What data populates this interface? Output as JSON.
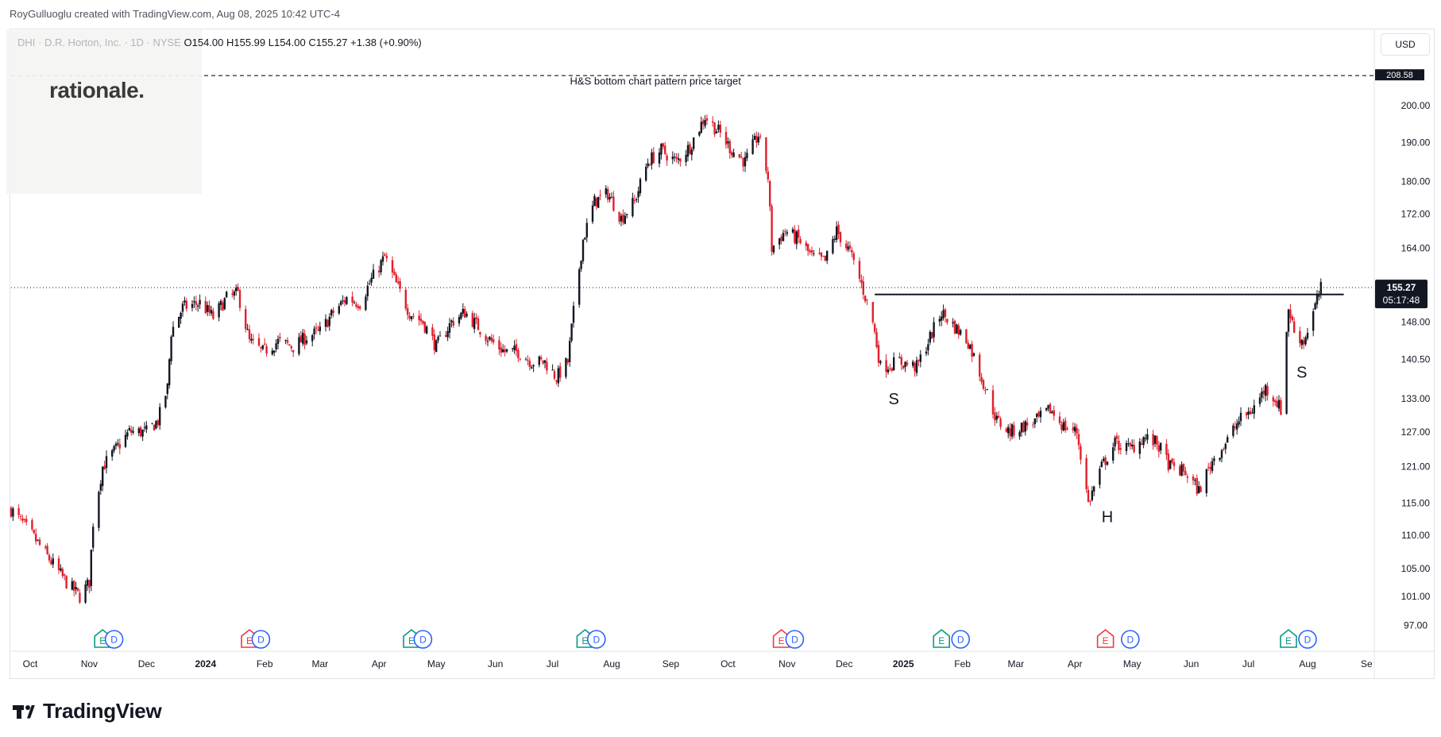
{
  "header": {
    "credit": "RoyGulluoglu created with TradingView.com, Aug 08, 2025 10:42 UTC-4",
    "symbol": "DHI · D.R. Horton, Inc. · 1D · NYSE",
    "ohlc": "O154.00  H155.99  L154.00  C155.27  +1.38 (+0.90%)",
    "currency": "USD",
    "watermark": "rationale."
  },
  "footer": {
    "brand": "TradingView"
  },
  "colors": {
    "up": "#131722",
    "down": "#e0202d",
    "earnings_green": "#089981",
    "earnings_red": "#f23645",
    "dividend": "#2962ff"
  },
  "chart_data": {
    "type": "candlestick",
    "title": "DHI · D.R. Horton, Inc. · 1D · NYSE",
    "xlabel": "",
    "ylabel": "",
    "y_scale": "log",
    "ylim": [
      94,
      214
    ],
    "x_tick_labels": [
      "Oct",
      "Nov",
      "Dec",
      "2024",
      "Feb",
      "Mar",
      "Apr",
      "May",
      "Jun",
      "Jul",
      "Aug",
      "Sep",
      "Oct",
      "Nov",
      "Dec",
      "2025",
      "Feb",
      "Mar",
      "Apr",
      "May",
      "Jun",
      "Jul",
      "Aug",
      "Se"
    ],
    "y_tick_labels": [
      97.0,
      101.0,
      105.0,
      110.0,
      115.0,
      121.0,
      127.0,
      133.0,
      140.5,
      148.0,
      155.27,
      164.0,
      172.0,
      180.0,
      190.0,
      200.0
    ],
    "last_price": 155.27,
    "last_price_label": "155.27",
    "countdown": "05:17:48",
    "price_target_label": "208.58",
    "price_series": {
      "start": "2023-09-21",
      "frequency": "weekly-approx",
      "points": [
        {
          "date": "2023-09-21",
          "price": 114
        },
        {
          "date": "2023-10-02",
          "price": 110
        },
        {
          "date": "2023-10-12",
          "price": 106
        },
        {
          "date": "2023-10-20",
          "price": 103
        },
        {
          "date": "2023-10-27",
          "price": 101
        },
        {
          "date": "2023-11-01",
          "price": 103
        },
        {
          "date": "2023-11-03",
          "price": 112
        },
        {
          "date": "2023-11-08",
          "price": 121
        },
        {
          "date": "2023-11-15",
          "price": 124
        },
        {
          "date": "2023-11-22",
          "price": 127
        },
        {
          "date": "2023-12-01",
          "price": 127
        },
        {
          "date": "2023-12-07",
          "price": 129
        },
        {
          "date": "2023-12-12",
          "price": 135
        },
        {
          "date": "2023-12-14",
          "price": 146
        },
        {
          "date": "2023-12-20",
          "price": 151
        },
        {
          "date": "2023-12-29",
          "price": 152
        },
        {
          "date": "2024-01-05",
          "price": 149
        },
        {
          "date": "2024-01-12",
          "price": 153
        },
        {
          "date": "2024-01-18",
          "price": 154
        },
        {
          "date": "2024-01-24",
          "price": 144
        },
        {
          "date": "2024-01-31",
          "price": 142
        },
        {
          "date": "2024-02-08",
          "price": 144
        },
        {
          "date": "2024-02-16",
          "price": 143
        },
        {
          "date": "2024-02-23",
          "price": 145
        },
        {
          "date": "2024-03-01",
          "price": 146
        },
        {
          "date": "2024-03-08",
          "price": 150
        },
        {
          "date": "2024-03-15",
          "price": 153
        },
        {
          "date": "2024-03-22",
          "price": 152
        },
        {
          "date": "2024-03-28",
          "price": 157
        },
        {
          "date": "2024-04-04",
          "price": 162
        },
        {
          "date": "2024-04-10",
          "price": 156
        },
        {
          "date": "2024-04-17",
          "price": 150
        },
        {
          "date": "2024-04-24",
          "price": 148
        },
        {
          "date": "2024-05-01",
          "price": 143
        },
        {
          "date": "2024-05-09",
          "price": 148
        },
        {
          "date": "2024-05-16",
          "price": 150
        },
        {
          "date": "2024-05-23",
          "price": 147
        },
        {
          "date": "2024-05-30",
          "price": 144
        },
        {
          "date": "2024-06-06",
          "price": 142
        },
        {
          "date": "2024-06-13",
          "price": 142
        },
        {
          "date": "2024-06-20",
          "price": 140
        },
        {
          "date": "2024-06-27",
          "price": 140
        },
        {
          "date": "2024-07-03",
          "price": 137
        },
        {
          "date": "2024-07-09",
          "price": 140
        },
        {
          "date": "2024-07-12",
          "price": 150
        },
        {
          "date": "2024-07-17",
          "price": 166
        },
        {
          "date": "2024-07-23",
          "price": 175
        },
        {
          "date": "2024-07-30",
          "price": 177
        },
        {
          "date": "2024-08-06",
          "price": 171
        },
        {
          "date": "2024-08-13",
          "price": 175
        },
        {
          "date": "2024-08-20",
          "price": 185
        },
        {
          "date": "2024-08-27",
          "price": 188
        },
        {
          "date": "2024-09-04",
          "price": 185
        },
        {
          "date": "2024-09-11",
          "price": 189
        },
        {
          "date": "2024-09-19",
          "price": 197
        },
        {
          "date": "2024-09-26",
          "price": 193
        },
        {
          "date": "2024-10-03",
          "price": 188
        },
        {
          "date": "2024-10-10",
          "price": 185
        },
        {
          "date": "2024-10-17",
          "price": 192
        },
        {
          "date": "2024-10-22",
          "price": 181
        },
        {
          "date": "2024-10-24",
          "price": 164
        },
        {
          "date": "2024-10-31",
          "price": 168
        },
        {
          "date": "2024-11-07",
          "price": 166
        },
        {
          "date": "2024-11-14",
          "price": 162
        },
        {
          "date": "2024-11-21",
          "price": 161
        },
        {
          "date": "2024-11-27",
          "price": 168
        },
        {
          "date": "2024-12-04",
          "price": 163
        },
        {
          "date": "2024-12-10",
          "price": 156
        },
        {
          "date": "2024-12-16",
          "price": 148
        },
        {
          "date": "2024-12-20",
          "price": 139
        },
        {
          "date": "2024-12-30",
          "price": 140
        },
        {
          "date": "2025-01-08",
          "price": 139
        },
        {
          "date": "2025-01-14",
          "price": 144
        },
        {
          "date": "2025-01-21",
          "price": 150
        },
        {
          "date": "2025-01-28",
          "price": 147
        },
        {
          "date": "2025-02-04",
          "price": 144
        },
        {
          "date": "2025-02-11",
          "price": 137
        },
        {
          "date": "2025-02-19",
          "price": 129
        },
        {
          "date": "2025-02-26",
          "price": 127
        },
        {
          "date": "2025-03-05",
          "price": 128
        },
        {
          "date": "2025-03-12",
          "price": 129
        },
        {
          "date": "2025-03-19",
          "price": 131
        },
        {
          "date": "2025-03-26",
          "price": 128
        },
        {
          "date": "2025-04-02",
          "price": 127
        },
        {
          "date": "2025-04-08",
          "price": 115
        },
        {
          "date": "2025-04-15",
          "price": 121
        },
        {
          "date": "2025-04-22",
          "price": 125
        },
        {
          "date": "2025-04-30",
          "price": 124
        },
        {
          "date": "2025-05-07",
          "price": 126
        },
        {
          "date": "2025-05-14",
          "price": 125
        },
        {
          "date": "2025-05-21",
          "price": 121
        },
        {
          "date": "2025-05-29",
          "price": 120
        },
        {
          "date": "2025-06-05",
          "price": 117
        },
        {
          "date": "2025-06-12",
          "price": 122
        },
        {
          "date": "2025-06-19",
          "price": 125
        },
        {
          "date": "2025-06-26",
          "price": 129
        },
        {
          "date": "2025-07-03",
          "price": 131
        },
        {
          "date": "2025-07-10",
          "price": 135
        },
        {
          "date": "2025-07-15",
          "price": 133
        },
        {
          "date": "2025-07-18",
          "price": 131
        },
        {
          "date": "2025-07-22",
          "price": 151
        },
        {
          "date": "2025-07-25",
          "price": 146
        },
        {
          "date": "2025-07-30",
          "price": 144
        },
        {
          "date": "2025-08-04",
          "price": 150
        },
        {
          "date": "2025-08-08",
          "price": 155
        }
      ]
    },
    "neckline": {
      "from": "2024-12-17",
      "to": "2025-08-20",
      "price": 153.8
    },
    "price_target": {
      "price": 208.58
    },
    "annotations": [
      {
        "text": "H&S bottom chart pattern price target",
        "date": "2024-08-24",
        "price": 206
      },
      {
        "text": "S",
        "date": "2024-12-27",
        "price": 132
      },
      {
        "text": "H",
        "date": "2025-04-18",
        "price": 112
      },
      {
        "text": "S",
        "date": "2025-07-29",
        "price": 137
      }
    ],
    "events": [
      {
        "type": "earnings",
        "label": "E",
        "date": "2023-11-08",
        "color": "green"
      },
      {
        "type": "dividend",
        "label": "D",
        "date": "2023-11-14"
      },
      {
        "type": "earnings",
        "label": "E",
        "date": "2024-01-24",
        "color": "red"
      },
      {
        "type": "dividend",
        "label": "D",
        "date": "2024-01-30"
      },
      {
        "type": "earnings",
        "label": "E",
        "date": "2024-04-18",
        "color": "green"
      },
      {
        "type": "dividend",
        "label": "D",
        "date": "2024-04-24"
      },
      {
        "type": "earnings",
        "label": "E",
        "date": "2024-07-18",
        "color": "green"
      },
      {
        "type": "dividend",
        "label": "D",
        "date": "2024-07-24"
      },
      {
        "type": "earnings",
        "label": "E",
        "date": "2024-10-29",
        "color": "red"
      },
      {
        "type": "dividend",
        "label": "D",
        "date": "2024-11-05"
      },
      {
        "type": "earnings",
        "label": "E",
        "date": "2025-01-21",
        "color": "green"
      },
      {
        "type": "dividend",
        "label": "D",
        "date": "2025-01-31"
      },
      {
        "type": "earnings",
        "label": "E",
        "date": "2025-04-17",
        "color": "red"
      },
      {
        "type": "dividend",
        "label": "D",
        "date": "2025-04-30"
      },
      {
        "type": "earnings",
        "label": "E",
        "date": "2025-07-22",
        "color": "green"
      },
      {
        "type": "dividend",
        "label": "D",
        "date": "2025-08-01"
      }
    ],
    "x_range": [
      "2023-09-21",
      "2025-09-05"
    ],
    "x_tick_dates": [
      "2023-10-01",
      "2023-11-01",
      "2023-12-01",
      "2024-01-01",
      "2024-02-01",
      "2024-03-01",
      "2024-04-01",
      "2024-05-01",
      "2024-06-01",
      "2024-07-01",
      "2024-08-01",
      "2024-09-01",
      "2024-10-01",
      "2024-11-01",
      "2024-12-01",
      "2025-01-01",
      "2025-02-01",
      "2025-03-01",
      "2025-04-01",
      "2025-05-01",
      "2025-06-01",
      "2025-07-01",
      "2025-08-01",
      "2025-09-01"
    ]
  }
}
